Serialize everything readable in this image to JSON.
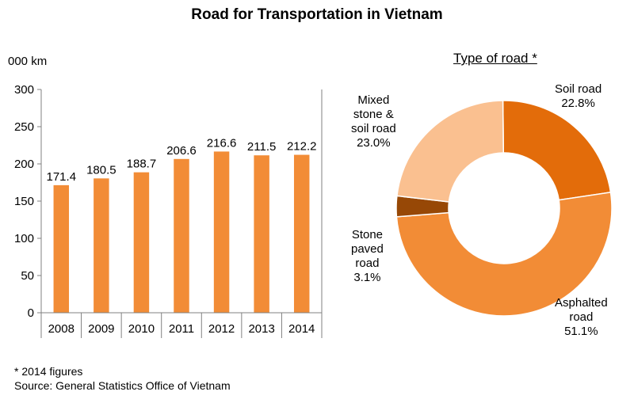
{
  "title": "Road for Transportation in Vietnam",
  "chart_data": [
    {
      "type": "bar",
      "unit_label": "000  km",
      "categories": [
        "2008",
        "2009",
        "2010",
        "2011",
        "2012",
        "2013",
        "2014"
      ],
      "values": [
        171.4,
        180.5,
        188.7,
        206.6,
        216.6,
        211.5,
        212.2
      ],
      "value_labels": [
        "171.4",
        "180.5",
        "188.7",
        "206.6",
        "216.6",
        "211.5",
        "212.2"
      ],
      "ylim": [
        0,
        300
      ],
      "yticks": [
        "0",
        "50",
        "100",
        "150",
        "200",
        "250",
        "300"
      ],
      "grid": false,
      "color": "#F28C36"
    },
    {
      "type": "pie",
      "variant": "donut",
      "title": "Type of road *",
      "slices": [
        {
          "name": "Soil road",
          "value": 22.8,
          "value_label": "22.8%",
          "color": "#E36C0A"
        },
        {
          "name": "Asphalted\nroad",
          "value": 51.1,
          "value_label": "51.1%",
          "color": "#F28C36"
        },
        {
          "name": "Stone\npaved\nroad",
          "value": 3.1,
          "value_label": "3.1%",
          "color": "#974806"
        },
        {
          "name": "Mixed\nstone &\nsoil road",
          "value": 23.0,
          "value_label": "23.0%",
          "color": "#FAC090"
        }
      ]
    }
  ],
  "footnote": {
    "line1": "* 2014 figures",
    "line2": "Source: General Statistics Office of Vietnam"
  }
}
